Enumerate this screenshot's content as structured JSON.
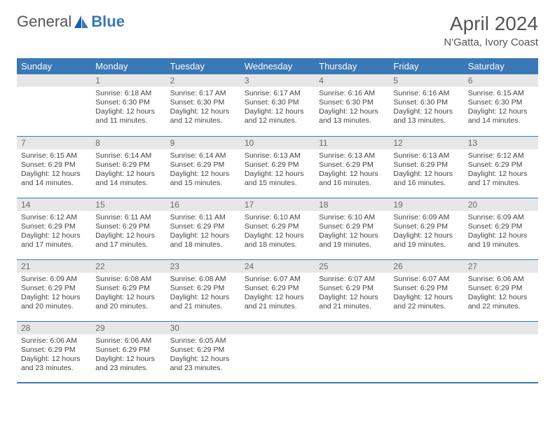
{
  "brand": {
    "part1": "General",
    "part2": "Blue"
  },
  "title": "April 2024",
  "location": "N'Gatta, Ivory Coast",
  "colors": {
    "header_bg": "#3a78b8",
    "header_text": "#ffffff",
    "daynum_bg": "#e7e7e7",
    "daynum_text": "#6a6a6a",
    "body_text": "#444444",
    "rule": "#3a78b8"
  },
  "day_headers": [
    "Sunday",
    "Monday",
    "Tuesday",
    "Wednesday",
    "Thursday",
    "Friday",
    "Saturday"
  ],
  "weeks": [
    [
      null,
      {
        "n": "1",
        "sr": "6:18 AM",
        "ss": "6:30 PM",
        "dl": "12 hours and 11 minutes."
      },
      {
        "n": "2",
        "sr": "6:17 AM",
        "ss": "6:30 PM",
        "dl": "12 hours and 12 minutes."
      },
      {
        "n": "3",
        "sr": "6:17 AM",
        "ss": "6:30 PM",
        "dl": "12 hours and 12 minutes."
      },
      {
        "n": "4",
        "sr": "6:16 AM",
        "ss": "6:30 PM",
        "dl": "12 hours and 13 minutes."
      },
      {
        "n": "5",
        "sr": "6:16 AM",
        "ss": "6:30 PM",
        "dl": "12 hours and 13 minutes."
      },
      {
        "n": "6",
        "sr": "6:15 AM",
        "ss": "6:30 PM",
        "dl": "12 hours and 14 minutes."
      }
    ],
    [
      {
        "n": "7",
        "sr": "6:15 AM",
        "ss": "6:29 PM",
        "dl": "12 hours and 14 minutes."
      },
      {
        "n": "8",
        "sr": "6:14 AM",
        "ss": "6:29 PM",
        "dl": "12 hours and 14 minutes."
      },
      {
        "n": "9",
        "sr": "6:14 AM",
        "ss": "6:29 PM",
        "dl": "12 hours and 15 minutes."
      },
      {
        "n": "10",
        "sr": "6:13 AM",
        "ss": "6:29 PM",
        "dl": "12 hours and 15 minutes."
      },
      {
        "n": "11",
        "sr": "6:13 AM",
        "ss": "6:29 PM",
        "dl": "12 hours and 16 minutes."
      },
      {
        "n": "12",
        "sr": "6:13 AM",
        "ss": "6:29 PM",
        "dl": "12 hours and 16 minutes."
      },
      {
        "n": "13",
        "sr": "6:12 AM",
        "ss": "6:29 PM",
        "dl": "12 hours and 17 minutes."
      }
    ],
    [
      {
        "n": "14",
        "sr": "6:12 AM",
        "ss": "6:29 PM",
        "dl": "12 hours and 17 minutes."
      },
      {
        "n": "15",
        "sr": "6:11 AM",
        "ss": "6:29 PM",
        "dl": "12 hours and 17 minutes."
      },
      {
        "n": "16",
        "sr": "6:11 AM",
        "ss": "6:29 PM",
        "dl": "12 hours and 18 minutes."
      },
      {
        "n": "17",
        "sr": "6:10 AM",
        "ss": "6:29 PM",
        "dl": "12 hours and 18 minutes."
      },
      {
        "n": "18",
        "sr": "6:10 AM",
        "ss": "6:29 PM",
        "dl": "12 hours and 19 minutes."
      },
      {
        "n": "19",
        "sr": "6:09 AM",
        "ss": "6:29 PM",
        "dl": "12 hours and 19 minutes."
      },
      {
        "n": "20",
        "sr": "6:09 AM",
        "ss": "6:29 PM",
        "dl": "12 hours and 19 minutes."
      }
    ],
    [
      {
        "n": "21",
        "sr": "6:09 AM",
        "ss": "6:29 PM",
        "dl": "12 hours and 20 minutes."
      },
      {
        "n": "22",
        "sr": "6:08 AM",
        "ss": "6:29 PM",
        "dl": "12 hours and 20 minutes."
      },
      {
        "n": "23",
        "sr": "6:08 AM",
        "ss": "6:29 PM",
        "dl": "12 hours and 21 minutes."
      },
      {
        "n": "24",
        "sr": "6:07 AM",
        "ss": "6:29 PM",
        "dl": "12 hours and 21 minutes."
      },
      {
        "n": "25",
        "sr": "6:07 AM",
        "ss": "6:29 PM",
        "dl": "12 hours and 21 minutes."
      },
      {
        "n": "26",
        "sr": "6:07 AM",
        "ss": "6:29 PM",
        "dl": "12 hours and 22 minutes."
      },
      {
        "n": "27",
        "sr": "6:06 AM",
        "ss": "6:29 PM",
        "dl": "12 hours and 22 minutes."
      }
    ],
    [
      {
        "n": "28",
        "sr": "6:06 AM",
        "ss": "6:29 PM",
        "dl": "12 hours and 23 minutes."
      },
      {
        "n": "29",
        "sr": "6:06 AM",
        "ss": "6:29 PM",
        "dl": "12 hours and 23 minutes."
      },
      {
        "n": "30",
        "sr": "6:05 AM",
        "ss": "6:29 PM",
        "dl": "12 hours and 23 minutes."
      },
      null,
      null,
      null,
      null
    ]
  ],
  "labels": {
    "sunrise": "Sunrise:",
    "sunset": "Sunset:",
    "daylight": "Daylight:"
  }
}
